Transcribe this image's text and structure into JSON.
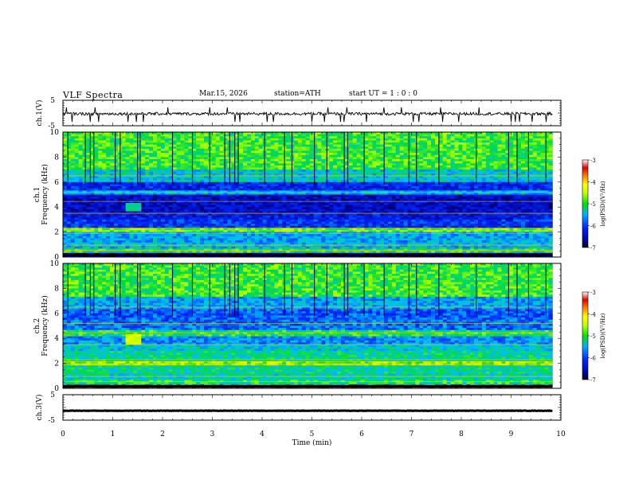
{
  "header": {
    "title": "VLF  Spectra",
    "date": "Mar.15, 2026",
    "station": "station=ATH",
    "start": "start  UT  =    1  : 0   : 0"
  },
  "chart_data": [
    {
      "type": "line",
      "name": "ch1-waveform",
      "ylabel": "ch.1(V)",
      "ylim": [
        -5,
        5
      ],
      "yticks": [
        "5",
        "-5"
      ],
      "xlim": [
        0,
        10
      ],
      "trace_end_min": 9.83,
      "baseline_v": -0.3,
      "spikes_min": [
        0.07,
        0.18,
        0.55,
        0.65,
        0.72,
        1.3,
        1.47,
        1.62,
        2.1,
        2.95,
        3.3,
        3.45,
        3.55,
        4.1,
        4.22,
        5.0,
        5.25,
        5.32,
        5.58,
        5.65,
        5.7,
        6.1,
        6.45,
        6.8,
        7.03,
        7.15,
        7.58,
        7.63,
        7.95,
        8.35,
        9.0,
        9.08,
        9.17,
        9.42,
        9.7
      ]
    },
    {
      "type": "heatmap",
      "name": "ch1-spectrogram",
      "ylabel": "ch.1\nFrequency (kHz)",
      "ylim": [
        0,
        10
      ],
      "yticks": [
        "0",
        "2",
        "4",
        "6",
        "8",
        "10"
      ],
      "xlim": [
        0,
        10
      ],
      "colorbar": {
        "label": "log(PSD)(V²/Hz)",
        "range": [
          -7,
          -3
        ],
        "ticks": [
          "-3",
          "-4",
          "-5",
          "-6",
          "-7"
        ]
      },
      "bands": [
        {
          "f": [
            0,
            0.3
          ],
          "level": -6.7
        },
        {
          "f": [
            0.3,
            0.6
          ],
          "level": -5.0
        },
        {
          "f": [
            0.6,
            1.2
          ],
          "level": -5.5
        },
        {
          "f": [
            1.2,
            2.0
          ],
          "level": -5.6
        },
        {
          "f": [
            2.0,
            2.3
          ],
          "level": -4.8
        },
        {
          "f": [
            2.3,
            3.0
          ],
          "level": -6.1
        },
        {
          "f": [
            3.0,
            3.5
          ],
          "level": -6.3
        },
        {
          "f": [
            3.5,
            5.0
          ],
          "level": -6.5
        },
        {
          "f": [
            5.0,
            5.3
          ],
          "level": -5.5
        },
        {
          "f": [
            5.3,
            6.0
          ],
          "level": -6.2
        },
        {
          "f": [
            6.0,
            7.0
          ],
          "level": -5.4
        },
        {
          "f": [
            7.0,
            10.0
          ],
          "level": -4.9
        }
      ],
      "burst": {
        "t": [
          1.25,
          1.6
        ],
        "f": [
          3.6,
          4.4
        ],
        "level": -5.2
      },
      "tweeks_min": [
        0.1,
        0.45,
        0.55,
        0.62,
        1.05,
        1.15,
        1.5,
        1.55,
        2.2,
        2.6,
        2.95,
        3.25,
        3.35,
        3.45,
        3.52,
        4.05,
        4.45,
        4.6,
        5.05,
        5.3,
        5.65,
        5.72,
        6.05,
        6.45,
        6.95,
        7.1,
        7.55,
        8.3,
        8.95,
        9.12,
        9.35,
        9.7
      ]
    },
    {
      "type": "heatmap",
      "name": "ch2-spectrogram",
      "ylabel": "ch.2\nFrequency (kHz)",
      "ylim": [
        0,
        10
      ],
      "yticks": [
        "0",
        "2",
        "4",
        "6",
        "8",
        "10"
      ],
      "xlim": [
        0,
        10
      ],
      "colorbar": {
        "label": "log(PSD)(V²/Hz)",
        "range": [
          -7,
          -3
        ],
        "ticks": [
          "-3",
          "-4",
          "-5",
          "-6",
          "-7"
        ]
      },
      "bands": [
        {
          "f": [
            0,
            0.3
          ],
          "level": -5.8
        },
        {
          "f": [
            0.3,
            0.7
          ],
          "level": -5.0
        },
        {
          "f": [
            0.7,
            1.2
          ],
          "level": -5.3
        },
        {
          "f": [
            1.2,
            1.9
          ],
          "level": -5.2
        },
        {
          "f": [
            1.9,
            2.2
          ],
          "level": -4.7
        },
        {
          "f": [
            2.2,
            3.0
          ],
          "level": -5.2
        },
        {
          "f": [
            3.0,
            3.5
          ],
          "level": -5.4
        },
        {
          "f": [
            3.5,
            4.2
          ],
          "level": -5.7
        },
        {
          "f": [
            4.2,
            4.6
          ],
          "level": -5.0
        },
        {
          "f": [
            4.6,
            5.5
          ],
          "level": -5.8
        },
        {
          "f": [
            5.5,
            6.3
          ],
          "level": -5.9
        },
        {
          "f": [
            6.3,
            7.3
          ],
          "level": -5.6
        },
        {
          "f": [
            7.3,
            10.0
          ],
          "level": -4.9
        }
      ],
      "burst": {
        "t": [
          1.25,
          1.6
        ],
        "f": [
          3.5,
          4.3
        ],
        "level": -4.4
      },
      "tweeks_min": [
        0.1,
        0.45,
        0.55,
        0.62,
        1.05,
        1.15,
        1.5,
        1.55,
        2.2,
        2.6,
        2.95,
        3.25,
        3.35,
        3.45,
        3.52,
        4.05,
        4.45,
        4.6,
        5.05,
        5.3,
        5.65,
        5.72,
        6.05,
        6.45,
        6.95,
        7.1,
        7.55,
        8.3,
        8.95,
        9.12,
        9.35,
        9.7
      ]
    },
    {
      "type": "line",
      "name": "ch3-waveform",
      "ylabel": "ch.3(V)",
      "ylim": [
        -5,
        5
      ],
      "yticks": [
        "5",
        "-5"
      ],
      "xlim": [
        0,
        10
      ],
      "trace_end_min": 9.83,
      "baseline_v": -1.3,
      "xlabel": "Time  (min)",
      "xticks": [
        "0",
        "1",
        "2",
        "3",
        "4",
        "5",
        "6",
        "7",
        "8",
        "9",
        "10"
      ]
    }
  ]
}
